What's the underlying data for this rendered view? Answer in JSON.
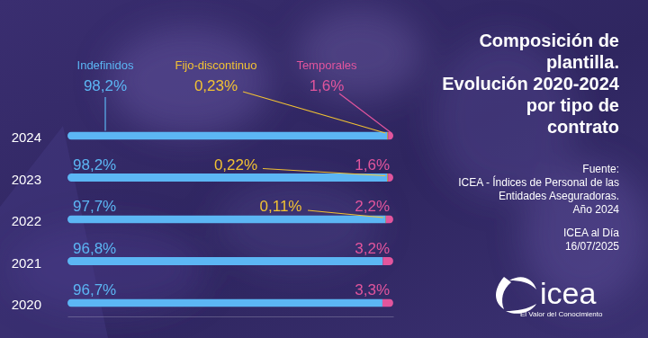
{
  "chart_data": {
    "type": "bar",
    "title": "Composición de\nplantilla.\nEvolución 2020-2024\npor tipo de\ncontrato",
    "orientation": "horizontal",
    "stacked": true,
    "data_labels": true,
    "tick_labels": "y",
    "categories": [
      "2024",
      "2023",
      "2022",
      "2021",
      "2020"
    ],
    "xlim": [
      0,
      100.03
    ],
    "xticks": [],
    "series": [
      {
        "name": "Indefinidos",
        "color": "#5cb6f4",
        "values": [
          98.2,
          98.2,
          97.7,
          96.8,
          96.7
        ],
        "value_labels": [
          "98,2%",
          "98,2%",
          "97,7%",
          "96,8%",
          "96,7%"
        ]
      },
      {
        "name": "Fijo-discontinuo",
        "color": "#f2c233",
        "values": [
          0.23,
          0.22,
          0.11,
          null,
          null
        ],
        "value_labels": [
          "0,23%",
          "0,22%",
          "0,11%",
          null,
          null
        ]
      },
      {
        "name": "Temporales",
        "color": "#e2559d",
        "values": [
          1.6,
          1.6,
          2.2,
          3.2,
          3.3
        ],
        "value_labels": [
          "1,6%",
          "1,6%",
          "2,2%",
          "3,2%",
          "3,3%"
        ]
      }
    ],
    "annotations": [
      "Fuente:\nICEA - Índices de Personal de las\nEntidades Aseguradoras.\nAño 2024",
      "ICEA al Día\n16/07/2025",
      "icea",
      "El Valor del Conocimiento"
    ]
  }
}
